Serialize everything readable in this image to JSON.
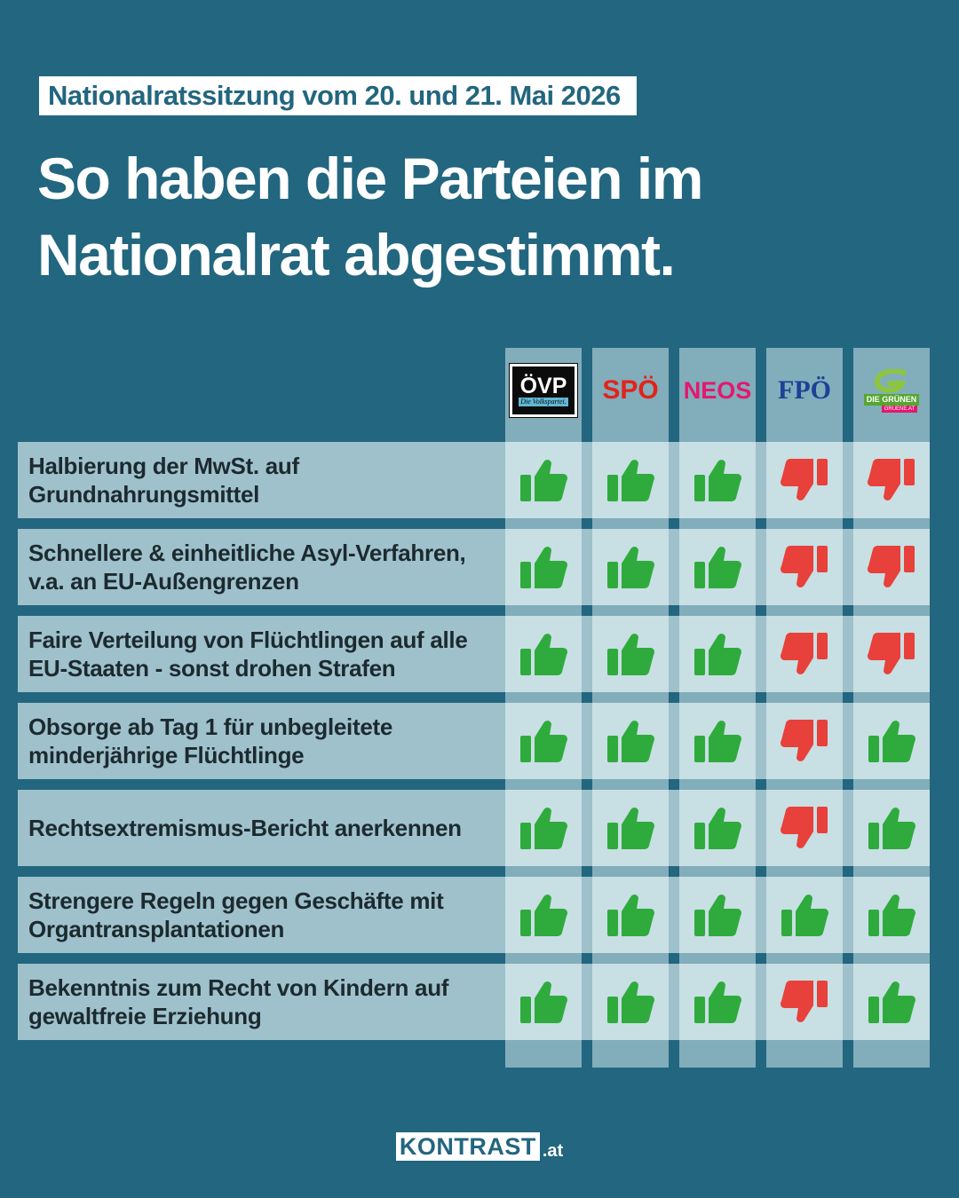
{
  "header": {
    "badge": "Nationalratssitzung vom 20. und 21. Mai 2026",
    "title_line1": "So haben die Parteien im",
    "title_line2": "Nationalrat abgestimmt."
  },
  "parties": [
    {
      "name": "ÖVP",
      "sub": "Die Volkspartei.",
      "color": "#0b0b0b"
    },
    {
      "name": "SPÖ",
      "color": "#e2231a"
    },
    {
      "name": "NEOS",
      "color": "#e3186f"
    },
    {
      "name": "FPÖ",
      "color": "#1c4196"
    },
    {
      "name": "DIE GRÜNEN",
      "sub": "GRUENE.AT",
      "color": "#55a630"
    }
  ],
  "colors": {
    "yes": "#2eab3c",
    "no": "#e8403a",
    "background": "#22667f"
  },
  "icons": {
    "yes": "thumbs-up-icon",
    "no": "thumbs-down-icon"
  },
  "votes": [
    {
      "topic_line1": "Halbierung der MwSt. auf",
      "topic_line2": "Grundnahrungsmittel",
      "votes": [
        "yes",
        "yes",
        "yes",
        "no",
        "no"
      ]
    },
    {
      "topic_line1": "Schnellere & einheitliche Asyl-Verfahren,",
      "topic_line2": "v.a. an EU-Außengrenzen",
      "votes": [
        "yes",
        "yes",
        "yes",
        "no",
        "no"
      ]
    },
    {
      "topic_line1": "Faire Verteilung von Flüchtlingen auf alle",
      "topic_line2": "EU-Staaten - sonst drohen Strafen",
      "votes": [
        "yes",
        "yes",
        "yes",
        "no",
        "no"
      ]
    },
    {
      "topic_line1": "Obsorge ab Tag 1 für unbegleitete",
      "topic_line2": "minderjährige Flüchtlinge",
      "votes": [
        "yes",
        "yes",
        "yes",
        "no",
        "yes"
      ]
    },
    {
      "topic_line1": "Rechtsextremismus-Bericht anerkennen",
      "topic_line2": "",
      "votes": [
        "yes",
        "yes",
        "yes",
        "no",
        "yes"
      ]
    },
    {
      "topic_line1": "Strengere Regeln gegen Geschäfte mit",
      "topic_line2": "Organtransplantationen",
      "votes": [
        "yes",
        "yes",
        "yes",
        "yes",
        "yes"
      ]
    },
    {
      "topic_line1": "Bekenntnis zum Recht von Kindern auf",
      "topic_line2": "gewaltfreie Erziehung",
      "votes": [
        "yes",
        "yes",
        "yes",
        "no",
        "yes"
      ]
    }
  ],
  "footer": {
    "brand": "KONTRAST",
    "tld": ".at"
  }
}
